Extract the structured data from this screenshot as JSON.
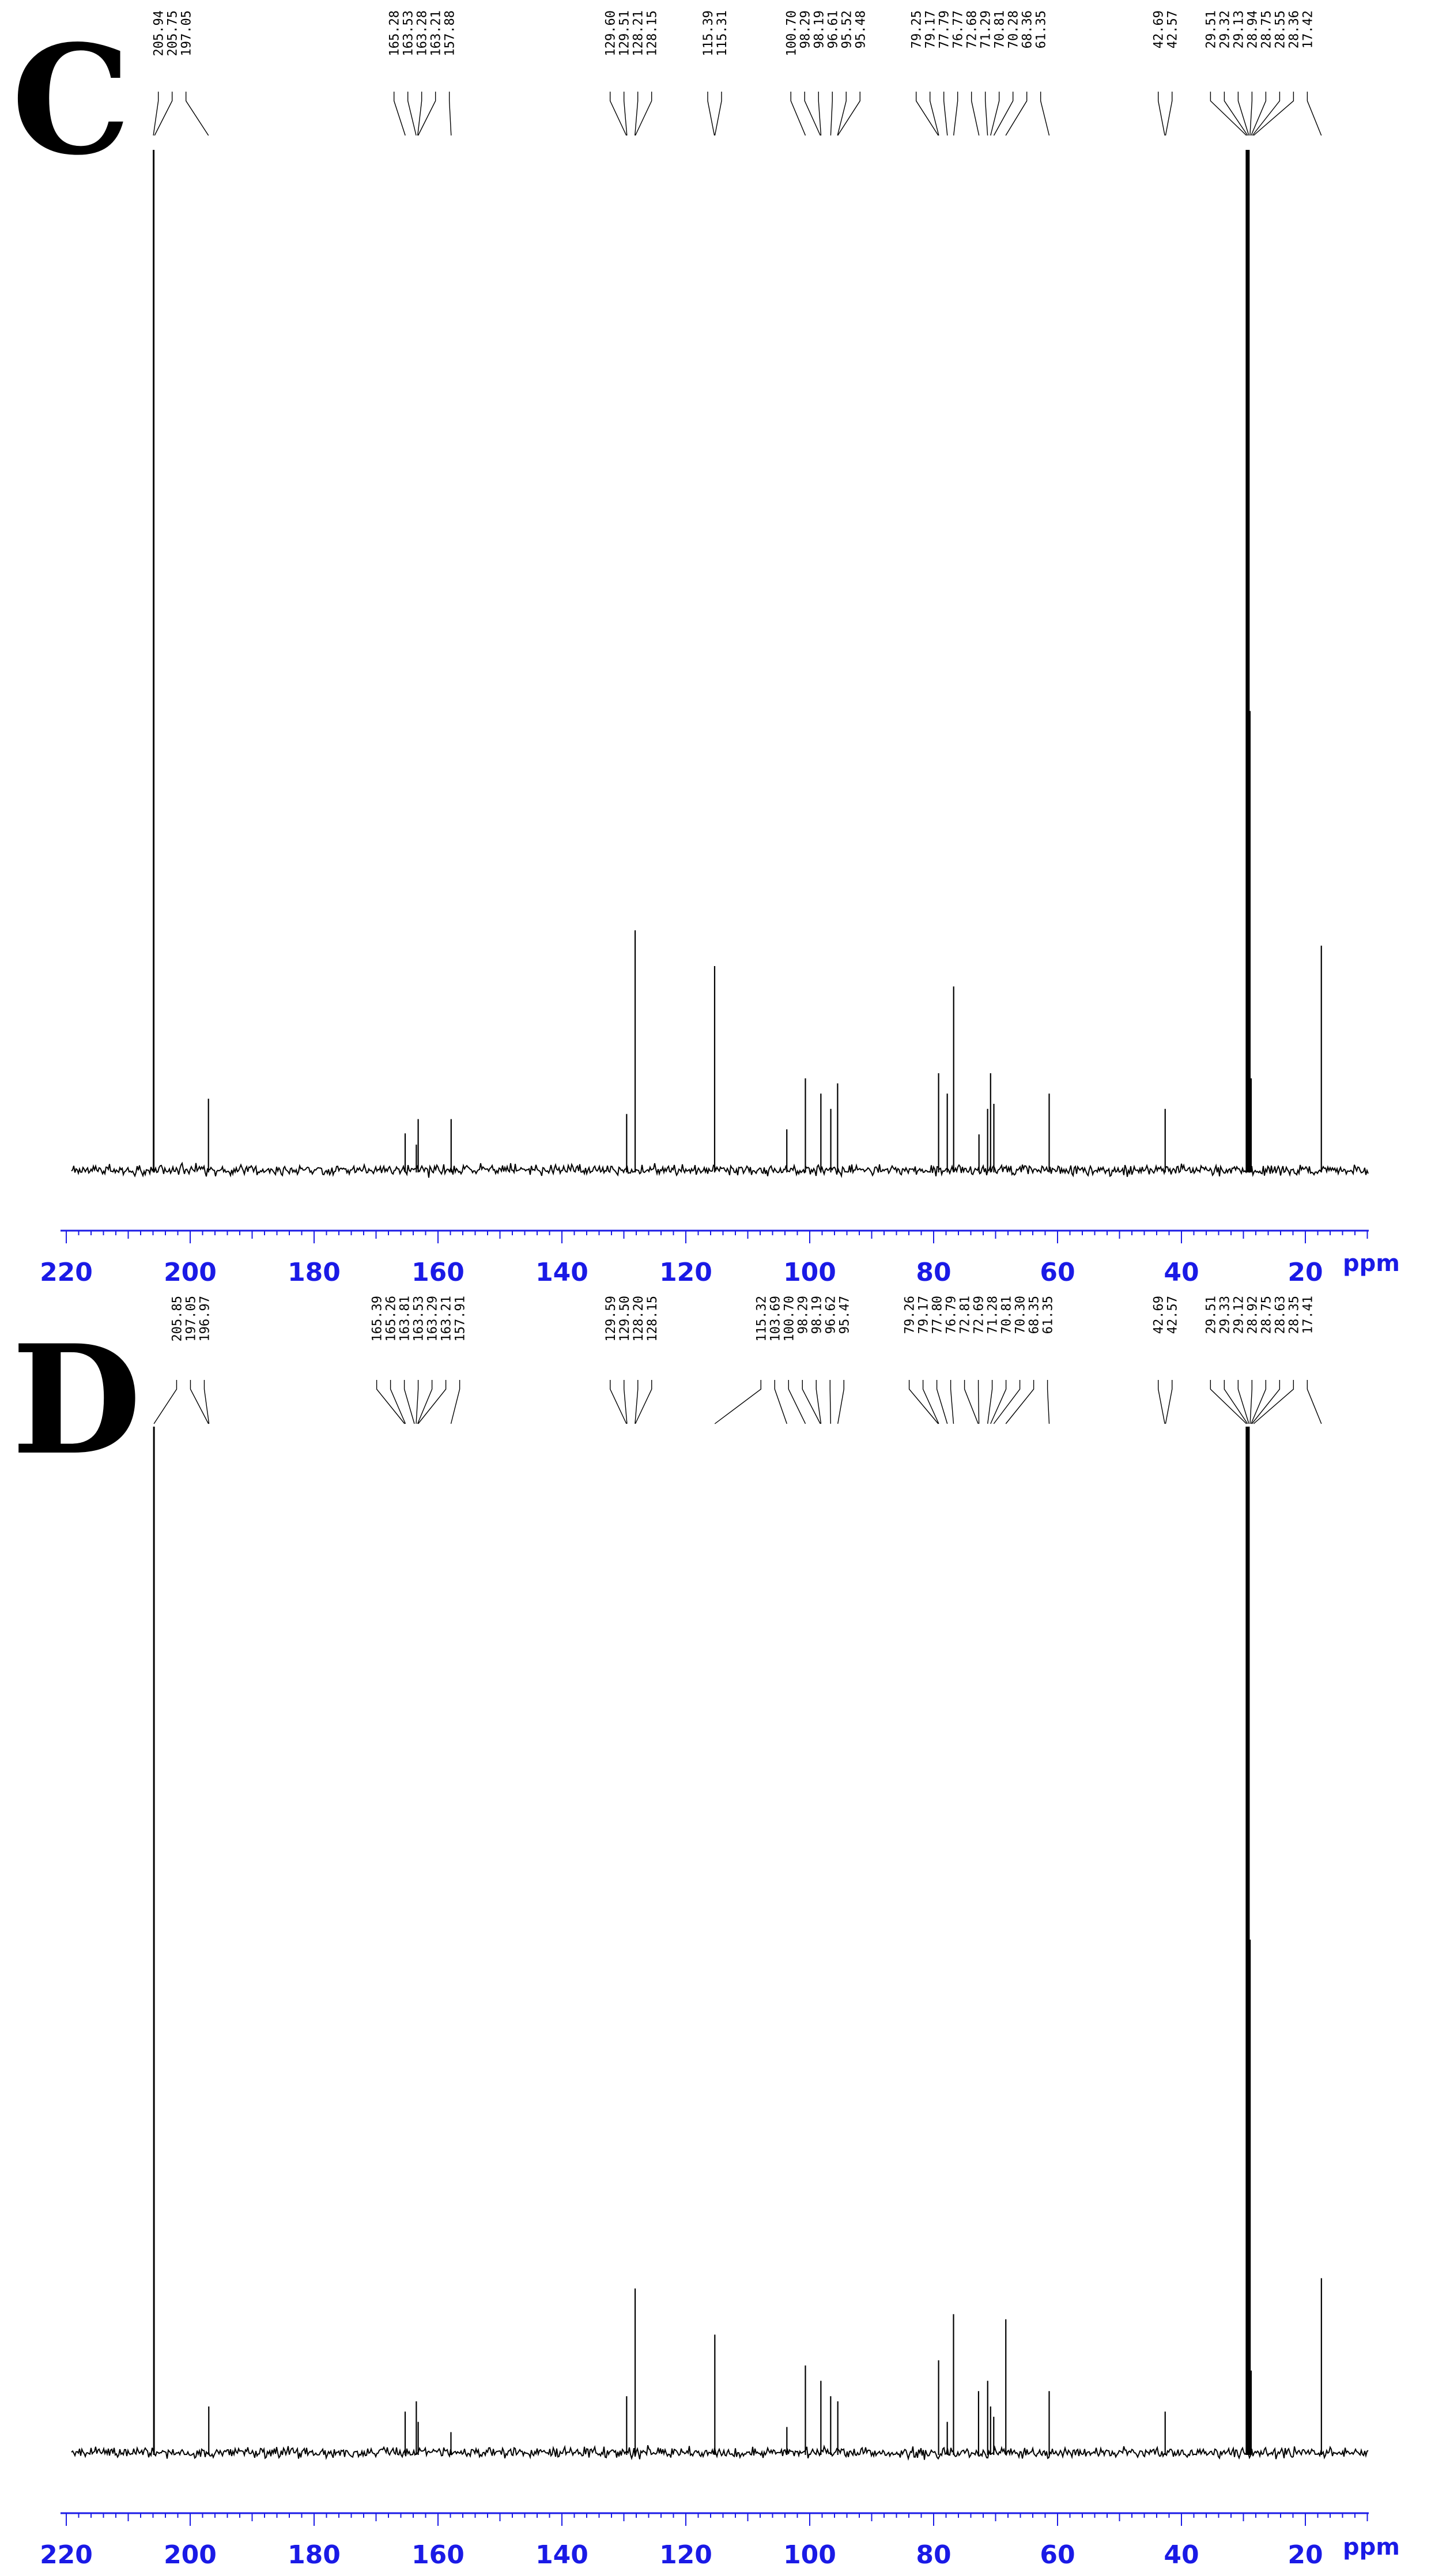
{
  "colors": {
    "spectrum": "#000000",
    "axis": "#1a1ae6"
  },
  "chart_data": [
    {
      "type": "line",
      "panel": "C",
      "xlabel": "ppm",
      "xlim": [
        220,
        10
      ],
      "x_ticks": [
        220,
        200,
        180,
        160,
        140,
        120,
        100,
        80,
        60,
        40,
        20
      ],
      "grid": false,
      "peak_labels": [
        "205.94",
        "205.75",
        "197.05",
        "165.28",
        "163.53",
        "163.28",
        "163.21",
        "157.88",
        "129.60",
        "129.51",
        "128.21",
        "128.15",
        "115.39",
        "115.31",
        "100.70",
        "98.29",
        "98.19",
        "96.61",
        "95.52",
        "95.48",
        "79.25",
        "79.17",
        "77.79",
        "76.77",
        "72.68",
        "71.29",
        "70.81",
        "70.28",
        "68.36",
        "61.35",
        "42.69",
        "42.57",
        "29.51",
        "29.32",
        "29.13",
        "28.94",
        "28.75",
        "28.55",
        "28.36",
        "17.42"
      ],
      "peaks": [
        {
          "ppm": 205.9,
          "intensity": 1.0
        },
        {
          "ppm": 197.05,
          "intensity": 0.07
        },
        {
          "ppm": 165.3,
          "intensity": 0.036
        },
        {
          "ppm": 163.5,
          "intensity": 0.025
        },
        {
          "ppm": 163.2,
          "intensity": 0.05
        },
        {
          "ppm": 157.88,
          "intensity": 0.05
        },
        {
          "ppm": 129.55,
          "intensity": 0.055
        },
        {
          "ppm": 128.18,
          "intensity": 0.235
        },
        {
          "ppm": 115.35,
          "intensity": 0.2
        },
        {
          "ppm": 103.7,
          "intensity": 0.04
        },
        {
          "ppm": 100.7,
          "intensity": 0.09
        },
        {
          "ppm": 98.2,
          "intensity": 0.075
        },
        {
          "ppm": 96.6,
          "intensity": 0.06
        },
        {
          "ppm": 95.5,
          "intensity": 0.085
        },
        {
          "ppm": 79.2,
          "intensity": 0.095
        },
        {
          "ppm": 77.8,
          "intensity": 0.075
        },
        {
          "ppm": 76.77,
          "intensity": 0.18
        },
        {
          "ppm": 72.68,
          "intensity": 0.035
        },
        {
          "ppm": 71.29,
          "intensity": 0.06
        },
        {
          "ppm": 70.81,
          "intensity": 0.095
        },
        {
          "ppm": 70.28,
          "intensity": 0.065
        },
        {
          "ppm": 61.35,
          "intensity": 0.075
        },
        {
          "ppm": 42.63,
          "intensity": 0.06
        },
        {
          "ppm": 29.5,
          "intensity": 1.0
        },
        {
          "ppm": 29.32,
          "intensity": 1.0
        },
        {
          "ppm": 29.13,
          "intensity": 1.0
        },
        {
          "ppm": 28.94,
          "intensity": 0.45
        },
        {
          "ppm": 28.75,
          "intensity": 0.09
        },
        {
          "ppm": 17.42,
          "intensity": 0.22
        }
      ]
    },
    {
      "type": "line",
      "panel": "D",
      "xlabel": "ppm",
      "xlim": [
        220,
        10
      ],
      "x_ticks": [
        220,
        200,
        180,
        160,
        140,
        120,
        100,
        80,
        60,
        40,
        20
      ],
      "grid": false,
      "peak_labels": [
        "205.85",
        "197.05",
        "196.97",
        "165.39",
        "165.26",
        "163.81",
        "163.53",
        "163.29",
        "163.21",
        "157.91",
        "129.59",
        "129.50",
        "128.20",
        "128.15",
        "115.32",
        "103.69",
        "100.70",
        "98.29",
        "98.19",
        "96.62",
        "95.47",
        "79.26",
        "79.17",
        "77.80",
        "76.79",
        "72.81",
        "72.69",
        "71.28",
        "70.81",
        "70.30",
        "68.35",
        "61.35",
        "42.69",
        "42.57",
        "29.51",
        "29.33",
        "29.12",
        "28.92",
        "28.75",
        "28.63",
        "28.35",
        "17.41"
      ],
      "peaks": [
        {
          "ppm": 205.85,
          "intensity": 1.0
        },
        {
          "ppm": 197.0,
          "intensity": 0.045
        },
        {
          "ppm": 165.3,
          "intensity": 0.04
        },
        {
          "ppm": 163.5,
          "intensity": 0.05
        },
        {
          "ppm": 163.2,
          "intensity": 0.03
        },
        {
          "ppm": 157.91,
          "intensity": 0.02
        },
        {
          "ppm": 129.55,
          "intensity": 0.055
        },
        {
          "ppm": 128.18,
          "intensity": 0.16
        },
        {
          "ppm": 115.32,
          "intensity": 0.115
        },
        {
          "ppm": 103.69,
          "intensity": 0.025
        },
        {
          "ppm": 100.7,
          "intensity": 0.085
        },
        {
          "ppm": 98.2,
          "intensity": 0.07
        },
        {
          "ppm": 96.62,
          "intensity": 0.055
        },
        {
          "ppm": 95.47,
          "intensity": 0.05
        },
        {
          "ppm": 79.2,
          "intensity": 0.09
        },
        {
          "ppm": 77.8,
          "intensity": 0.03
        },
        {
          "ppm": 76.79,
          "intensity": 0.135
        },
        {
          "ppm": 72.75,
          "intensity": 0.06
        },
        {
          "ppm": 71.28,
          "intensity": 0.07
        },
        {
          "ppm": 70.81,
          "intensity": 0.045
        },
        {
          "ppm": 70.3,
          "intensity": 0.035
        },
        {
          "ppm": 68.35,
          "intensity": 0.13
        },
        {
          "ppm": 61.35,
          "intensity": 0.06
        },
        {
          "ppm": 42.63,
          "intensity": 0.04
        },
        {
          "ppm": 29.5,
          "intensity": 1.0
        },
        {
          "ppm": 29.33,
          "intensity": 1.0
        },
        {
          "ppm": 29.12,
          "intensity": 1.0
        },
        {
          "ppm": 28.92,
          "intensity": 0.5
        },
        {
          "ppm": 28.75,
          "intensity": 0.08
        },
        {
          "ppm": 17.41,
          "intensity": 0.17
        }
      ]
    }
  ]
}
